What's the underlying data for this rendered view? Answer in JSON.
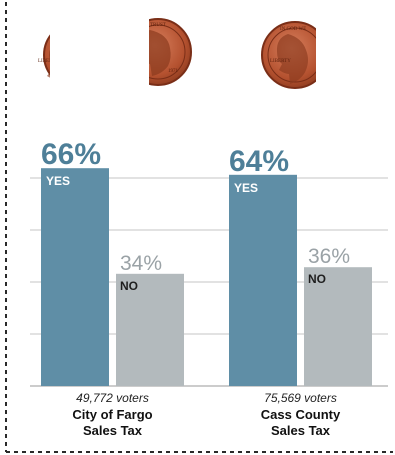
{
  "colors": {
    "yes_bar": "#5f8ea6",
    "no_bar": "#b3babd",
    "yes_text": "#4e7f98",
    "no_text": "#9aa2a6",
    "grid": "#c4c4c4",
    "penny": "#b4512f",
    "penny_dark": "#7a2e17",
    "border": "#2a2a2a"
  },
  "decor": {
    "penny_text_top": "IN GOD WE TRUST",
    "penny_text_left": "LIBERTY",
    "penny_year": "1971"
  },
  "chart_data": {
    "type": "bar",
    "categories": [
      "City of Fargo Sales Tax",
      "Cass County Sales Tax"
    ],
    "series": [
      {
        "name": "YES",
        "values": [
          66,
          64
        ]
      },
      {
        "name": "NO",
        "values": [
          34,
          36
        ]
      }
    ],
    "ylim": [
      0,
      100
    ],
    "grid": true,
    "groups": [
      {
        "caption_line1": "City of Fargo",
        "caption_line2": "Sales Tax",
        "voters": "49,772 voters",
        "yes_pct_label": "66%",
        "no_pct_label": "34%",
        "yes_label": "YES",
        "no_label": "NO"
      },
      {
        "caption_line1": "Cass County",
        "caption_line2": "Sales Tax",
        "voters": "75,569 voters",
        "yes_pct_label": "64%",
        "no_pct_label": "36%",
        "yes_label": "YES",
        "no_label": "NO"
      }
    ]
  }
}
